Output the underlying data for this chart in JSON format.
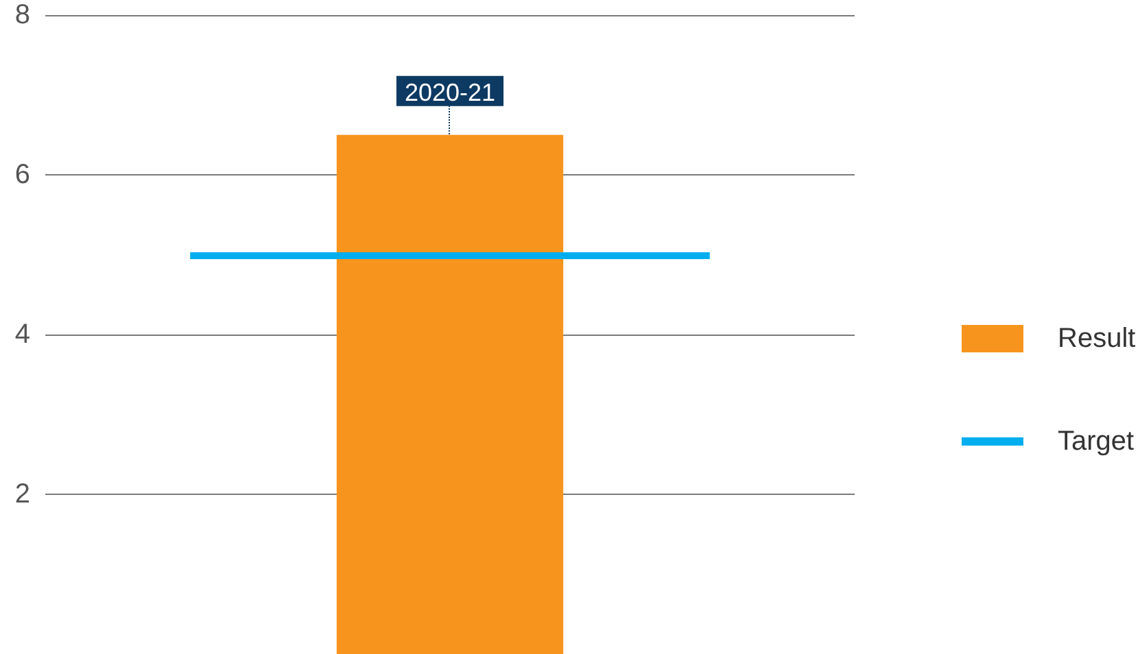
{
  "chart_data": {
    "type": "bar",
    "categories": [
      "2020-21"
    ],
    "series": [
      {
        "name": "Result",
        "color": "#f7941d",
        "values": [
          6.5
        ]
      }
    ],
    "ylim": [
      0,
      8
    ],
    "yticks": [
      2,
      4,
      6,
      8
    ],
    "grid": "y",
    "legend": "right",
    "ref_lines": [
      {
        "axis": "y",
        "value": 5,
        "label": "Target",
        "color": "#00aeef"
      }
    ]
  }
}
